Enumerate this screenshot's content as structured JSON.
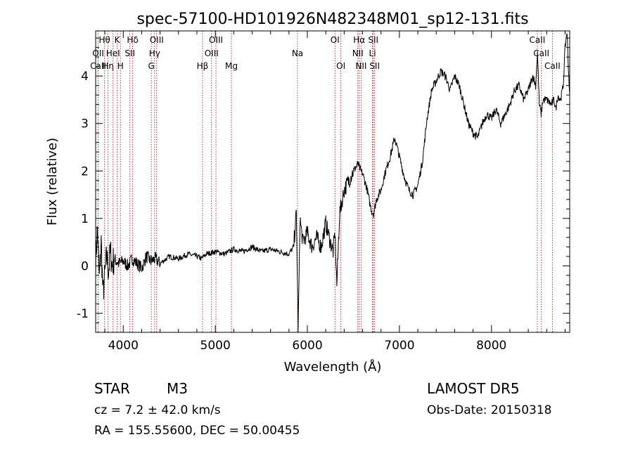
{
  "chart_data": {
    "type": "line",
    "title": "spec-57100-HD101926N482348M01_sp12-131.fits",
    "xlabel": "Wavelength (Å)",
    "ylabel": "Flux (relative)",
    "xlim": [
      3700,
      8850
    ],
    "ylim": [
      -1.4,
      4.95
    ],
    "xticks": [
      4000,
      5000,
      6000,
      7000,
      8000
    ],
    "yticks": [
      -1,
      0,
      1,
      2,
      3,
      4
    ],
    "grid": false,
    "line_color": "#000000",
    "marker_color": "#b22222",
    "series": [
      {
        "x": [
          3700,
          3720,
          3740,
          3760,
          3780,
          3800,
          3820,
          3840,
          3860,
          3880,
          3900,
          3950,
          4000,
          4050,
          4100,
          4150,
          4200,
          4250,
          4300,
          4350,
          4400,
          4500,
          4600,
          4700,
          4800,
          4850,
          4900,
          5000,
          5100,
          5200,
          5300,
          5400,
          5500,
          5600,
          5700,
          5800,
          5850,
          5880,
          5900,
          5910,
          5920,
          5950,
          6000,
          6050,
          6100,
          6150,
          6200,
          6250,
          6280,
          6300,
          6320,
          6350,
          6400,
          6450,
          6500,
          6550,
          6580,
          6600,
          6650,
          6680,
          6700,
          6720,
          6750,
          6800,
          6850,
          6900,
          6950,
          7000,
          7050,
          7100,
          7150,
          7200,
          7250,
          7300,
          7350,
          7400,
          7450,
          7500,
          7550,
          7600,
          7650,
          7700,
          7750,
          7800,
          7850,
          7900,
          7950,
          8000,
          8050,
          8100,
          8150,
          8200,
          8250,
          8300,
          8350,
          8400,
          8450,
          8480,
          8500,
          8520,
          8540,
          8560,
          8600,
          8650,
          8680,
          8700,
          8720,
          8750,
          8780,
          8800,
          8820,
          8840,
          8850
        ],
        "y": [
          0.1,
          0.8,
          -0.3,
          0.5,
          -0.6,
          -0.2,
          0.2,
          -0.1,
          0.3,
          0.0,
          0.15,
          0.05,
          0.1,
          0.0,
          0.15,
          0.05,
          -0.05,
          0.2,
          0.1,
          0.15,
          0.05,
          0.2,
          0.15,
          0.25,
          0.2,
          0.15,
          0.25,
          0.3,
          0.25,
          0.35,
          0.3,
          0.4,
          0.3,
          0.35,
          0.3,
          0.25,
          0.4,
          1.1,
          -1.3,
          -0.3,
          1.0,
          0.5,
          0.7,
          0.4,
          0.6,
          0.4,
          0.9,
          0.5,
          0.3,
          0.7,
          -0.4,
          1.1,
          1.6,
          1.8,
          2.0,
          2.15,
          2.0,
          1.95,
          1.6,
          1.3,
          1.15,
          1.1,
          1.4,
          1.6,
          2.0,
          2.3,
          2.7,
          2.3,
          1.9,
          1.6,
          1.5,
          1.7,
          2.2,
          3.1,
          3.7,
          3.9,
          4.1,
          4.0,
          3.7,
          4.0,
          3.8,
          3.4,
          3.0,
          2.8,
          2.7,
          3.0,
          3.2,
          3.1,
          3.3,
          3.0,
          3.2,
          3.4,
          3.7,
          3.8,
          3.5,
          3.7,
          4.0,
          3.8,
          4.5,
          3.4,
          3.2,
          3.5,
          3.5,
          3.4,
          3.5,
          3.3,
          3.6,
          3.5,
          3.8,
          4.6,
          4.95,
          4.0,
          3.6
        ]
      }
    ],
    "line_markers": [
      {
        "label": "Hθ",
        "x": 3797,
        "row": 0
      },
      {
        "label": "OII",
        "x": 3727,
        "row": 1
      },
      {
        "label": "CaII",
        "x": 3727,
        "row": 2
      },
      {
        "label": "Hη",
        "x": 3835,
        "row": 2
      },
      {
        "label": "HeI",
        "x": 3889,
        "row": 1
      },
      {
        "label": "K",
        "x": 3934,
        "row": 0
      },
      {
        "label": "H",
        "x": 3969,
        "row": 2
      },
      {
        "label": "SII",
        "x": 4072,
        "row": 1
      },
      {
        "label": "Hδ",
        "x": 4102,
        "row": 0
      },
      {
        "label": "OIII",
        "x": 4363,
        "row": 0
      },
      {
        "label": "Hγ",
        "x": 4340,
        "row": 1
      },
      {
        "label": "G",
        "x": 4305,
        "row": 2
      },
      {
        "label": "Hβ",
        "x": 4861,
        "row": 2
      },
      {
        "label": "OIII",
        "x": 5007,
        "row": 0
      },
      {
        "label": "OIII",
        "x": 4959,
        "row": 1
      },
      {
        "label": "Mg",
        "x": 5175,
        "row": 2
      },
      {
        "label": "Na",
        "x": 5893,
        "row": 1
      },
      {
        "label": "OI",
        "x": 6300,
        "row": 0
      },
      {
        "label": "OI",
        "x": 6364,
        "row": 2
      },
      {
        "label": "Hα",
        "x": 6563,
        "row": 0
      },
      {
        "label": "NII",
        "x": 6548,
        "row": 1
      },
      {
        "label": "NII",
        "x": 6584,
        "row": 2
      },
      {
        "label": "SII",
        "x": 6716,
        "row": 0
      },
      {
        "label": "Li",
        "x": 6707,
        "row": 1
      },
      {
        "label": "SII",
        "x": 6731,
        "row": 2
      },
      {
        "label": "CaII",
        "x": 8498,
        "row": 0
      },
      {
        "label": "CaII",
        "x": 8542,
        "row": 1
      },
      {
        "label": "CaII",
        "x": 8662,
        "row": 2
      }
    ]
  },
  "info": {
    "object_type": "STAR",
    "subclass": "M3",
    "survey": "LAMOST DR5",
    "cz": "cz = 7.2 ± 42.0 km/s",
    "obs_date": "Obs-Date: 20150318",
    "coords": "RA = 155.55600, DEC =  50.00455"
  }
}
